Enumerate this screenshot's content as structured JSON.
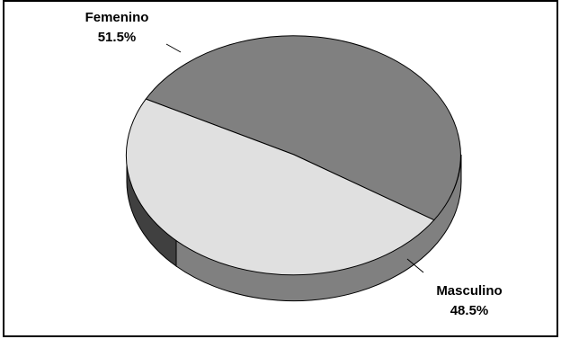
{
  "chart_data": {
    "type": "pie",
    "style": "3d",
    "slices": [
      {
        "name": "Femenino",
        "value": 51.5,
        "label": "51.5%",
        "color": "#808080"
      },
      {
        "name": "Masculino",
        "value": 48.5,
        "label": "48.5%",
        "color": "#e0e0e0"
      }
    ],
    "title": "",
    "legend": "none"
  }
}
